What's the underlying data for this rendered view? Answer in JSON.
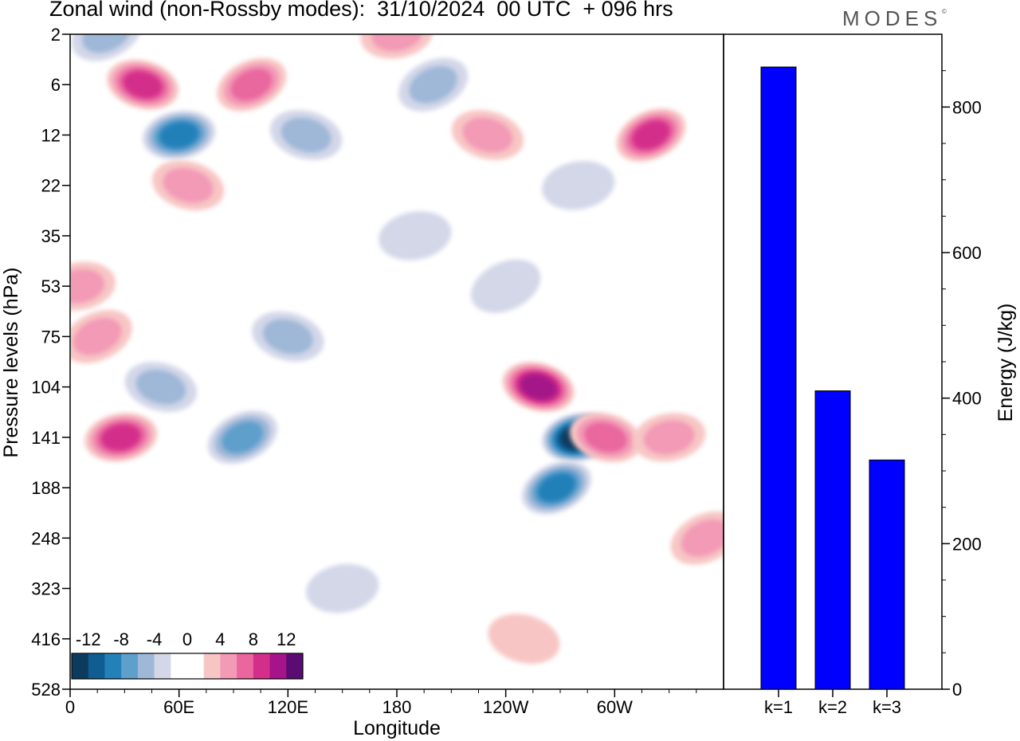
{
  "title": "Zonal wind (non-Rossby modes):  31/10/2024  00 UTC  + 096 hrs",
  "logo": "MODES",
  "logo_mark": "©",
  "colors": {
    "level_neg_12": "#0d3b5e",
    "level_neg_10": "#0f5d91",
    "level_neg_8": "#2480b9",
    "level_neg_6": "#5e9fcc",
    "level_neg_4": "#9fb8d8",
    "level_neg_2": "#d3d7e8",
    "level_0": "#ffffff",
    "level_2": "#f7c6c4",
    "level_4": "#f39ab6",
    "level_6": "#e9679e",
    "level_8": "#d42e8b",
    "level_10": "#a51488",
    "level_12": "#5b0c73",
    "bar_fill": "#0000ff"
  },
  "chart_data": [
    {
      "type": "heatmap",
      "xlabel": "Longitude",
      "ylabel": "Pressure levels (hPa)",
      "x_ticks": [
        "0",
        "60E",
        "120E",
        "180",
        "120W",
        "60W"
      ],
      "x_tick_values": [
        0,
        60,
        120,
        180,
        240,
        300
      ],
      "xlim": [
        0,
        360
      ],
      "y_ticks": [
        "2",
        "6",
        "12",
        "22",
        "35",
        "53",
        "75",
        "104",
        "141",
        "188",
        "248",
        "323",
        "416",
        "528"
      ],
      "colorbar_labels": [
        "-12",
        "-8",
        "-4",
        "0",
        "4",
        "8",
        "12"
      ],
      "colorbar_levels": [
        -12,
        -10,
        -8,
        -6,
        -4,
        -2,
        0,
        2,
        4,
        6,
        8,
        10,
        12
      ],
      "features": [
        {
          "lon": 20,
          "level": "2",
          "value": -4
        },
        {
          "lon": 40,
          "level": "6",
          "value": 8
        },
        {
          "lon": 60,
          "level": "12",
          "value": -8
        },
        {
          "lon": 100,
          "level": "6",
          "value": 6
        },
        {
          "lon": 130,
          "level": "12",
          "value": -4
        },
        {
          "lon": 180,
          "level": "2",
          "value": 4
        },
        {
          "lon": 200,
          "level": "6",
          "value": -4
        },
        {
          "lon": 230,
          "level": "12",
          "value": 4
        },
        {
          "lon": 280,
          "level": "22",
          "value": -2
        },
        {
          "lon": 320,
          "level": "12",
          "value": 8
        },
        {
          "lon": 65,
          "level": "22",
          "value": 4
        },
        {
          "lon": 5,
          "level": "53",
          "value": 4
        },
        {
          "lon": 15,
          "level": "75",
          "value": 4
        },
        {
          "lon": 50,
          "level": "104",
          "value": -4
        },
        {
          "lon": 28,
          "level": "141",
          "value": 8
        },
        {
          "lon": 95,
          "level": "141",
          "value": -6
        },
        {
          "lon": 120,
          "level": "75",
          "value": -4
        },
        {
          "lon": 190,
          "level": "35",
          "value": -2
        },
        {
          "lon": 240,
          "level": "53",
          "value": -2
        },
        {
          "lon": 258,
          "level": "104",
          "value": 10
        },
        {
          "lon": 280,
          "level": "141",
          "value": -12
        },
        {
          "lon": 268,
          "level": "188",
          "value": -8
        },
        {
          "lon": 295,
          "level": "141",
          "value": 6
        },
        {
          "lon": 330,
          "level": "141",
          "value": 4
        },
        {
          "lon": 350,
          "level": "248",
          "value": 4
        },
        {
          "lon": 250,
          "level": "416",
          "value": 2
        },
        {
          "lon": 150,
          "level": "323",
          "value": -2
        }
      ]
    },
    {
      "type": "bar",
      "categories": [
        "k=1",
        "k=2",
        "k=3"
      ],
      "values": [
        855,
        410,
        315
      ],
      "ylabel": "Energy (J/kg)",
      "ylim": [
        0,
        900
      ],
      "y_ticks": [
        0,
        200,
        400,
        600,
        800
      ]
    }
  ]
}
